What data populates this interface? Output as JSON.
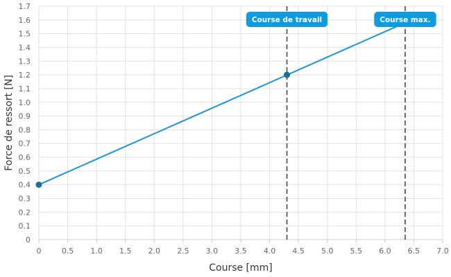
{
  "chart_data": {
    "type": "line",
    "title": "",
    "xlabel": "Course [mm]",
    "ylabel": "Force de ressort [N]",
    "xlim": [
      0,
      7
    ],
    "ylim": [
      0,
      1.7
    ],
    "x_ticks": [
      "0",
      "0.5",
      "1.0",
      "1.5",
      "2.0",
      "2.5",
      "3.0",
      "3.5",
      "4.0",
      "4.5",
      "5.0",
      "5.5",
      "6.0",
      "6.5",
      "7.0"
    ],
    "y_ticks": [
      "0",
      "0.1",
      "0.2",
      "0.3",
      "0.4",
      "0.5",
      "0.6",
      "0.7",
      "0.8",
      "0.9",
      "1.0",
      "1.1",
      "1.2",
      "1.3",
      "1.4",
      "1.5",
      "1.6",
      "1.7"
    ],
    "grid": true,
    "series": [
      {
        "color": "#1a95d3",
        "points": [
          {
            "x": 0,
            "y": 0.4
          },
          {
            "x": 6.35,
            "y": 1.58
          }
        ],
        "markers": [
          {
            "x": 0,
            "y": 0.4
          },
          {
            "x": 4.3,
            "y": 1.2
          }
        ]
      }
    ],
    "reference_lines": [
      {
        "x": 4.3,
        "label": "Course de travail"
      },
      {
        "x": 6.35,
        "label": "Course max."
      }
    ],
    "colors": {
      "line": "#1a95d3",
      "callout": "#0e9be0",
      "reference": "#444444"
    }
  }
}
